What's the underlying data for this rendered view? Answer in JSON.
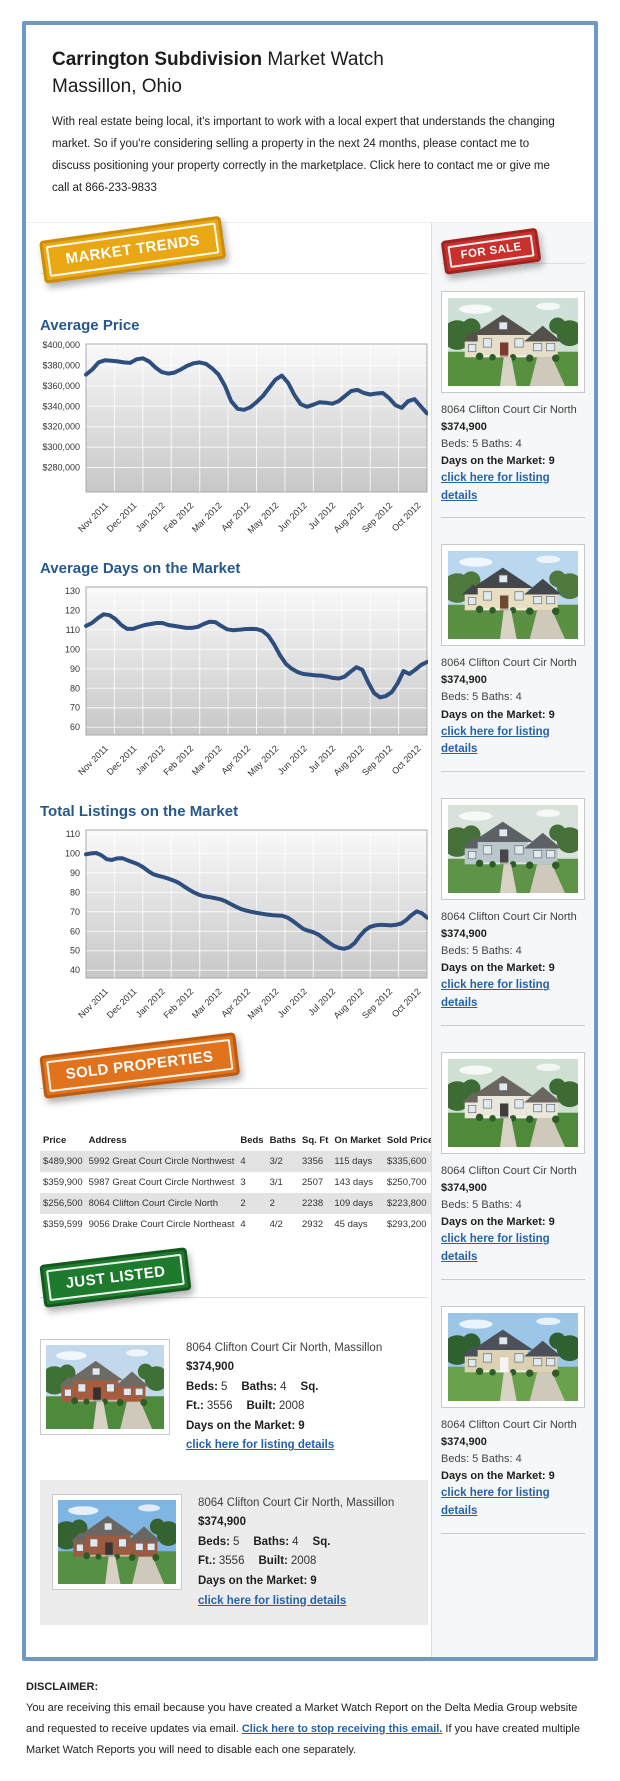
{
  "header": {
    "title_bold": "Carrington Subdivision",
    "title_regular": " Market Watch",
    "subtitle": "Massillon, Ohio",
    "intro": "With real estate being local, it's important to work with a local expert that understands the changing market. So if you're considering selling a property in the next 24 months, please contact me to discuss positioning your property correctly in the marketplace. Click here to contact me or give me call at 866-233-9833"
  },
  "badges": {
    "market_trends": "MARKET TRENDS",
    "for_sale": "FOR SALE",
    "sold_properties": "SOLD PROPERTIES",
    "just_listed": "JUST LISTED"
  },
  "chart_data": [
    {
      "type": "line",
      "title": "Average Price",
      "x_labels": [
        "Nov 2011",
        "Dec 2011",
        "Jan 2012",
        "Feb 2012",
        "Mar 2012",
        "Apr 2012",
        "May 2012",
        "Jun 2012",
        "Jul 2012",
        "Aug 2012",
        "Sep 2012",
        "Oct 2012"
      ],
      "values": [
        371000,
        376000,
        383000,
        385000,
        384500,
        384000,
        383000,
        382500,
        386000,
        387000,
        384000,
        378000,
        373500,
        372000,
        373000,
        376000,
        379500,
        382000,
        383000,
        381500,
        377000,
        371000,
        360000,
        345000,
        337500,
        336500,
        339000,
        344000,
        350000,
        358000,
        366000,
        370000,
        363000,
        351000,
        342000,
        339500,
        341500,
        344000,
        343500,
        342500,
        345000,
        350000,
        355000,
        356000,
        353000,
        351500,
        352500,
        353000,
        348000,
        341000,
        338500,
        345000,
        347000,
        340000,
        333000
      ],
      "ylim": [
        256000,
        401000
      ],
      "yticks": [
        400000,
        380000,
        360000,
        340000,
        320000,
        300000,
        280000
      ],
      "ytick_labels": [
        "$400,000",
        "$380,000",
        "$360,000",
        "$340,000",
        "$320,000",
        "$300,000",
        "$280,000"
      ],
      "grid": true,
      "line_color": "#2d4e7e"
    },
    {
      "type": "line",
      "title": "Average Days on the Market",
      "x_labels": [
        "Nov 2011",
        "Dec 2011",
        "Jan 2012",
        "Feb 2012",
        "Mar 2012",
        "Apr 2012",
        "May 2012",
        "Jun 2012",
        "Jul 2012",
        "Aug 2012",
        "Sep 2012",
        "Oct 2012"
      ],
      "values": [
        112,
        113.5,
        116,
        118,
        117.5,
        115.5,
        112.5,
        110.5,
        110.5,
        111.5,
        112.5,
        113,
        113.5,
        113.5,
        112.5,
        112,
        111.5,
        111,
        111,
        111.5,
        113,
        114.2,
        114,
        112,
        110.3,
        109.8,
        110,
        110.4,
        110.5,
        110.4,
        109.5,
        107,
        102.5,
        97,
        92.5,
        90,
        88.3,
        87.3,
        87,
        86.6,
        86.5,
        86,
        85.3,
        85,
        86,
        88.5,
        90.8,
        89.5,
        83,
        77.5,
        75.3,
        76,
        78,
        82.5,
        88.8,
        87.3,
        89.5,
        92,
        93.5
      ],
      "ylim": [
        56,
        132
      ],
      "yticks": [
        130,
        120,
        110,
        100,
        90,
        80,
        70,
        60
      ],
      "ytick_labels": [
        "130",
        "120",
        "110",
        "100",
        "90",
        "80",
        "70",
        "60"
      ],
      "grid": true,
      "line_color": "#2d4e7e"
    },
    {
      "type": "line",
      "title": "Total Listings on the Market",
      "x_labels": [
        "Nov 2011",
        "Dec 2011",
        "Jan 2012",
        "Feb 2012",
        "Mar 2012",
        "Apr 2012",
        "May 2012",
        "Jun 2012",
        "Jul 2012",
        "Aug 2012",
        "Sep 2012",
        "Oct 2012"
      ],
      "values": [
        99.5,
        100,
        100.2,
        99,
        97,
        96.6,
        97.4,
        97.5,
        96.5,
        95.5,
        94.5,
        93,
        91,
        89.3,
        88.5,
        87.8,
        87,
        86,
        84.8,
        83,
        81.3,
        79.8,
        78.6,
        77.9,
        77.5,
        77,
        76.4,
        75.4,
        74,
        72.6,
        71.4,
        70.6,
        70,
        69.5,
        69,
        68.6,
        68.3,
        68.1,
        68,
        67,
        65.3,
        63.3,
        61.3,
        60.3,
        59.5,
        58.3,
        56.3,
        54.3,
        52.5,
        51.4,
        51,
        51.8,
        54,
        57.5,
        60.5,
        62.3,
        63,
        63.3,
        63.2,
        63,
        63.3,
        64,
        65.8,
        68.3,
        70.2,
        69.3,
        67
      ],
      "ylim": [
        36,
        112
      ],
      "yticks": [
        110,
        100,
        90,
        80,
        70,
        60,
        50,
        40
      ],
      "ytick_labels": [
        "110",
        "100",
        "90",
        "80",
        "70",
        "60",
        "50",
        "40"
      ],
      "grid": true,
      "line_color": "#2d4e7e"
    }
  ],
  "sold_table": {
    "headers": [
      "Price",
      "Address",
      "Beds",
      "Baths",
      "Sq. Ft",
      "On Market",
      "Sold Price"
    ],
    "rows": [
      [
        "$489,900",
        "5992 Great Court Circle Northwest",
        "4",
        "3/2",
        "3356",
        "115 days",
        "$335,600"
      ],
      [
        "$359,900",
        "5987 Great Court Circle Northwest",
        "3",
        "3/1",
        "2507",
        "143 days",
        "$250,700"
      ],
      [
        "$256,500",
        "8064 Clifton Court Circle North",
        "2",
        "2",
        "2238",
        "109 days",
        "$223,800"
      ],
      [
        "$359,599",
        "9056 Drake Court Circle Northeast",
        "4",
        "4/2",
        "2932",
        "45 days",
        "$293,200"
      ]
    ]
  },
  "for_sale_listings": [
    {
      "address": "8064 Clifton Court Cir North",
      "price": "$374,900",
      "beds_baths": "Beds: 5 Baths: 4",
      "dom": "Days on the Market: 9",
      "link": "click here for listing details"
    },
    {
      "address": "8064 Clifton Court Cir North",
      "price": "$374,900",
      "beds_baths": "Beds: 5 Baths: 4",
      "dom": "Days on the Market: 9",
      "link": "click here for listing details"
    },
    {
      "address": "8064 Clifton Court Cir North",
      "price": "$374,900",
      "beds_baths": "Beds: 5 Baths: 4",
      "dom": "Days on the Market: 9",
      "link": "click here for listing details"
    },
    {
      "address": "8064 Clifton Court Cir North",
      "price": "$374,900",
      "beds_baths": "Beds: 5 Baths: 4",
      "dom": "Days on the Market: 9",
      "link": "click here for listing details"
    },
    {
      "address": "8064 Clifton Court Cir North",
      "price": "$374,900",
      "beds_baths": "Beds: 5 Baths: 4",
      "dom": "Days on the Market: 9",
      "link": "click here for listing details"
    }
  ],
  "labels": {
    "beds": "Beds:",
    "baths": "Baths:",
    "sqft": "Sq. Ft.:",
    "built": "Built:",
    "dom": "Days on the Market:"
  },
  "just_listed_listings": [
    {
      "address": "8064 Clifton Court Cir North, Massillon",
      "price": "$374,900",
      "beds": "5",
      "baths": "4",
      "sqft": "3556",
      "built": "2008",
      "dom": "9",
      "link": "click here for listing details"
    },
    {
      "address": "8064 Clifton Court Cir North, Massillon",
      "price": "$374,900",
      "beds": "5",
      "baths": "4",
      "sqft": "3556",
      "built": "2008",
      "dom": "9",
      "link": "click here for listing details"
    }
  ],
  "disclaimer": {
    "heading": "DISCLAIMER:",
    "text_before": "You are receiving this email because you have created a Market Watch Report on the Delta Media Group website and requested to receive updates via email. ",
    "link": "Click here to stop receiving this email.",
    "text_after": " If you have created multiple Market Watch Reports you will need to disable each one separately."
  },
  "colors": {
    "accent_border": "#6d99c7",
    "chart_line": "#2d4e7e",
    "badge_gold": "#e8a713",
    "badge_red": "#c9302c",
    "badge_orange": "#e2731d",
    "badge_green": "#1e7a2d",
    "link": "#2563a8"
  }
}
